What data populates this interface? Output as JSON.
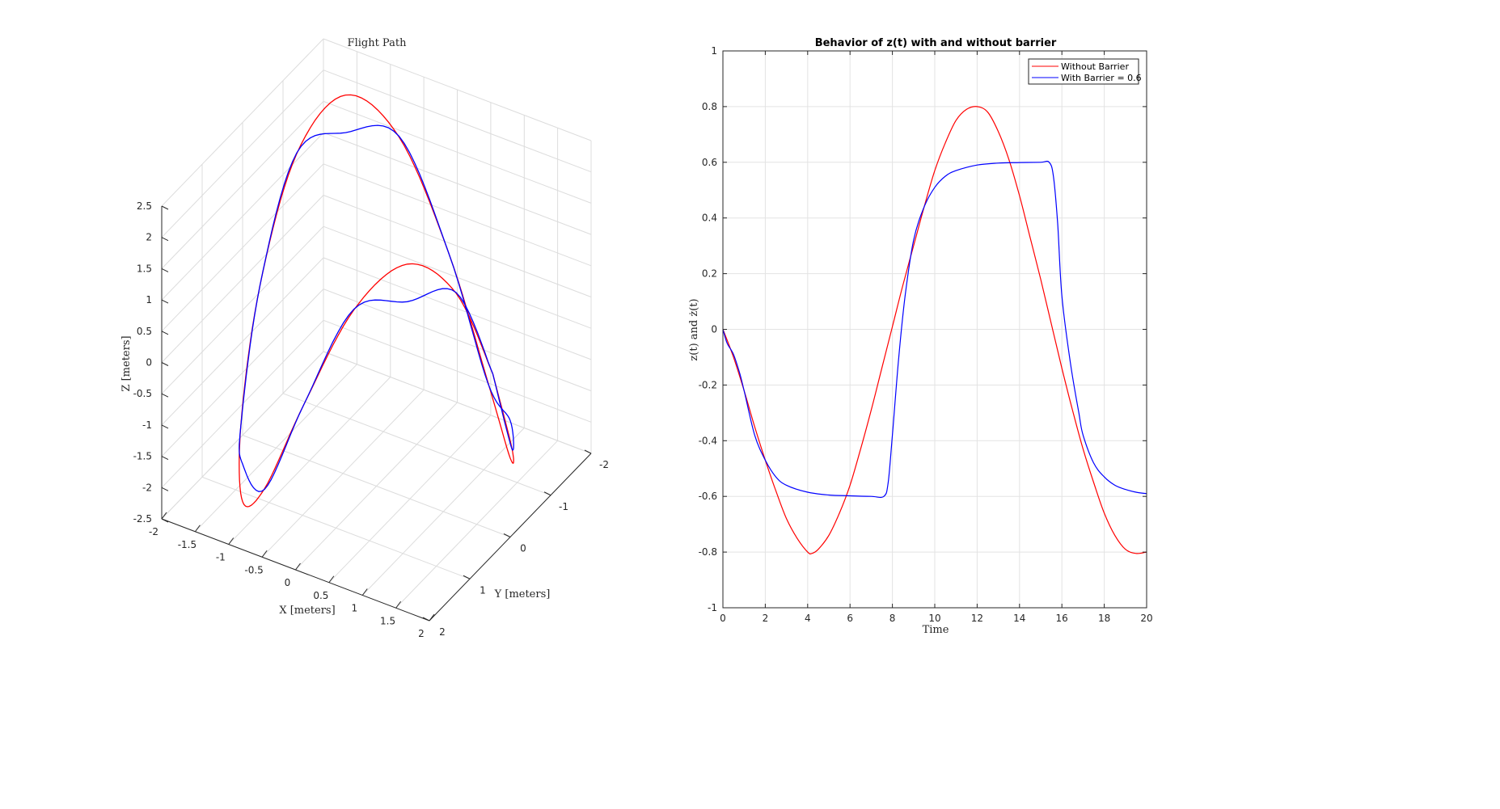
{
  "chart_data": [
    {
      "type": "line",
      "subtype": "3d-line",
      "title": "Flight Path",
      "xlabel": "X [meters]",
      "ylabel": "Y [meters]",
      "zlabel": "Z [meters]",
      "xlim": [
        -2,
        2
      ],
      "ylim": [
        -2,
        2
      ],
      "zlim": [
        -2.5,
        2.5
      ],
      "x_ticks": [
        "-2",
        "-1.5",
        "-1",
        "-0.5",
        "0",
        "0.5",
        "1",
        "1.5",
        "2"
      ],
      "y_ticks": [
        "-2",
        "-1",
        "0",
        "1",
        "2"
      ],
      "z_ticks": [
        "-2.5",
        "-2",
        "-1.5",
        "-1",
        "-0.5",
        "0",
        "0.5",
        "1",
        "1.5",
        "2",
        "2.5"
      ],
      "grid": true,
      "series": [
        {
          "color": "#ff0000",
          "description": "figure-eight trajectory without barrier",
          "points": [
            [
              1.0,
              0.0,
              0.0
            ],
            [
              0.924,
              0.383,
              0.566
            ],
            [
              0.707,
              0.707,
              0.8
            ],
            [
              0.383,
              0.924,
              0.566
            ],
            [
              0.0,
              1.0,
              0.0
            ],
            [
              -0.383,
              0.924,
              -0.566
            ],
            [
              -0.707,
              0.707,
              -0.8
            ],
            [
              -0.924,
              0.383,
              -0.566
            ],
            [
              -1.0,
              0.0,
              0.0
            ],
            [
              -0.924,
              -0.383,
              0.566
            ],
            [
              -0.707,
              -0.707,
              0.8
            ],
            [
              -0.383,
              -0.924,
              0.566
            ],
            [
              0.0,
              -1.0,
              0.0
            ],
            [
              0.383,
              -0.924,
              -0.566
            ],
            [
              0.707,
              -0.707,
              -0.8
            ],
            [
              0.924,
              -0.383,
              -0.566
            ],
            [
              1.0,
              0.0,
              0.0
            ]
          ]
        },
        {
          "color": "#0000ff",
          "description": "trajectory with barrier",
          "points": [
            [
              1.0,
              0.0,
              0.0
            ],
            [
              0.924,
              0.383,
              0.57
            ],
            [
              0.707,
              0.707,
              0.6
            ],
            [
              0.383,
              0.924,
              0.57
            ],
            [
              0.0,
              1.0,
              0.0
            ],
            [
              -0.383,
              0.924,
              -0.57
            ],
            [
              -0.707,
              0.707,
              -0.6
            ],
            [
              -0.924,
              0.383,
              -0.57
            ],
            [
              -1.0,
              0.0,
              0.0
            ],
            [
              -0.924,
              -0.383,
              0.57
            ],
            [
              -0.707,
              -0.707,
              0.6
            ],
            [
              -0.383,
              -0.924,
              0.57
            ],
            [
              0.0,
              -1.0,
              0.0
            ],
            [
              0.383,
              -0.924,
              -0.57
            ],
            [
              0.707,
              -0.707,
              -0.6
            ],
            [
              0.924,
              -0.383,
              -0.57
            ],
            [
              1.0,
              0.0,
              0.0
            ]
          ]
        }
      ]
    },
    {
      "type": "line",
      "title": "Behavior of z(t) with and without barrier",
      "xlabel": "Time",
      "ylabel": "z(t) and ż(t)",
      "xlim": [
        0,
        20
      ],
      "ylim": [
        -1,
        1
      ],
      "x_ticks": [
        "0",
        "2",
        "4",
        "6",
        "8",
        "10",
        "12",
        "14",
        "16",
        "18",
        "20"
      ],
      "y_ticks": [
        "-1",
        "-0.8",
        "-0.6",
        "-0.4",
        "-0.2",
        "0",
        "0.2",
        "0.4",
        "0.6",
        "0.8",
        "1"
      ],
      "grid": true,
      "legend": {
        "placement": "top-right"
      },
      "series": [
        {
          "name": "Without Barrier",
          "color": "#ff0000",
          "x": [
            0,
            0.5,
            1,
            1.5,
            2,
            2.5,
            3,
            3.5,
            4,
            4.2,
            4.5,
            5,
            5.5,
            6,
            6.5,
            7,
            7.5,
            8,
            8.5,
            9,
            9.5,
            10,
            10.5,
            11,
            11.5,
            12,
            12.5,
            13,
            13.5,
            14,
            14.5,
            15,
            15.5,
            16,
            16.5,
            17,
            17.5,
            18,
            18.5,
            19,
            19.5,
            20
          ],
          "values": [
            0,
            -0.1,
            -0.22,
            -0.35,
            -0.47,
            -0.58,
            -0.68,
            -0.75,
            -0.8,
            -0.805,
            -0.79,
            -0.74,
            -0.66,
            -0.56,
            -0.43,
            -0.29,
            -0.14,
            0.01,
            0.16,
            0.3,
            0.44,
            0.57,
            0.67,
            0.75,
            0.79,
            0.8,
            0.78,
            0.71,
            0.61,
            0.48,
            0.33,
            0.18,
            0.02,
            -0.14,
            -0.29,
            -0.43,
            -0.55,
            -0.66,
            -0.74,
            -0.79,
            -0.805,
            -0.8
          ]
        },
        {
          "name": "With Barrier = 0.6",
          "color": "#0000ff",
          "x": [
            0,
            0.2,
            0.5,
            0.8,
            1,
            1.5,
            2,
            2.5,
            3,
            4,
            5,
            6,
            7,
            7.6,
            7.8,
            8,
            8.3,
            8.6,
            9,
            9.5,
            10,
            10.5,
            11,
            12,
            13,
            14,
            15,
            15.4,
            15.6,
            15.8,
            16,
            16.4,
            16.8,
            17,
            17.5,
            18,
            18.5,
            19,
            19.5,
            20
          ],
          "values": [
            0,
            -0.05,
            -0.09,
            -0.16,
            -0.22,
            -0.38,
            -0.47,
            -0.53,
            -0.56,
            -0.585,
            -0.595,
            -0.598,
            -0.6,
            -0.6,
            -0.55,
            -0.38,
            -0.1,
            0.12,
            0.32,
            0.44,
            0.51,
            0.55,
            0.57,
            0.59,
            0.597,
            0.599,
            0.6,
            0.6,
            0.55,
            0.38,
            0.12,
            -0.12,
            -0.3,
            -0.38,
            -0.48,
            -0.53,
            -0.56,
            -0.575,
            -0.585,
            -0.59
          ]
        }
      ]
    }
  ]
}
